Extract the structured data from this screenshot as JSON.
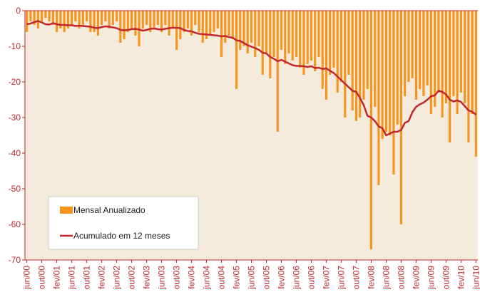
{
  "chart_data": {
    "type": "bar_line",
    "categories": [
      "jun/00",
      null,
      null,
      null,
      "out/00",
      null,
      null,
      null,
      "fev/01",
      null,
      null,
      null,
      "jun/01",
      null,
      null,
      null,
      "out/01",
      null,
      null,
      null,
      "fev/02",
      null,
      null,
      null,
      "jun/02",
      null,
      null,
      null,
      "out/02",
      null,
      null,
      null,
      "fev/03",
      null,
      null,
      null,
      "jun/03",
      null,
      null,
      null,
      "out/03",
      null,
      null,
      null,
      "fev/04",
      null,
      null,
      null,
      "jun/04",
      null,
      null,
      null,
      "out/04",
      null,
      null,
      null,
      "fev/05",
      null,
      null,
      null,
      "jun/05",
      null,
      null,
      null,
      "out/05",
      null,
      null,
      null,
      "fev/06",
      null,
      null,
      null,
      "jun/06",
      null,
      null,
      null,
      "out/06",
      null,
      null,
      null,
      "fev/07",
      null,
      null,
      null,
      "jun/07",
      null,
      null,
      null,
      "out/07",
      null,
      null,
      null,
      "fev/08",
      null,
      null,
      null,
      "jun/08",
      null,
      null,
      null,
      "out/08",
      null,
      null,
      null,
      "fev/09",
      null,
      null,
      null,
      "jun/09",
      null,
      null,
      null,
      "out/09",
      null,
      null,
      null,
      "fev/10",
      null,
      null,
      null,
      "jun/10"
    ],
    "series": [
      {
        "name": "Mensal Anualizado",
        "kind": "bar",
        "color": "#f7941d",
        "values": [
          -6,
          -3,
          -4,
          -5,
          -3,
          -2,
          -3,
          -4,
          -6,
          -5,
          -6,
          -5,
          -4,
          -3,
          -5,
          -4,
          -3,
          -6,
          -6,
          -7,
          -4,
          -3,
          -5,
          -4,
          -3,
          -9,
          -8,
          -6,
          -5,
          -7,
          -10,
          -5,
          -4,
          -6,
          -5,
          -4,
          -6,
          -4,
          -7,
          -5,
          -11,
          -8,
          -6,
          -5,
          -7,
          -4,
          -6,
          -9,
          -8,
          -7,
          -6,
          -5,
          -13,
          -9,
          -7,
          -8,
          -22,
          -11,
          -10,
          -12,
          -9,
          -13,
          -10,
          -18,
          -12,
          -19,
          -13,
          -34,
          -11,
          -15,
          -12,
          -14,
          -13,
          -16,
          -18,
          -15,
          -14,
          -17,
          -13,
          -22,
          -25,
          -18,
          -16,
          -23,
          -20,
          -30,
          -18,
          -28,
          -31,
          -30,
          -25,
          -22,
          -67,
          -27,
          -49,
          -36,
          -34,
          -35,
          -46,
          -32,
          -60,
          -24,
          -20,
          -19,
          -25,
          -22,
          -24,
          -21,
          -29,
          -27,
          -23,
          -30,
          -26,
          -37,
          -24,
          -29,
          -23,
          -26,
          -37,
          -29,
          -41
        ]
      },
      {
        "name": "Acumulado em 12 meses",
        "kind": "line",
        "color": "#c1272d",
        "values": [
          -3.8,
          -3.6,
          -3.2,
          -2.9,
          -3.3,
          -3.8,
          -3.9,
          -3.5,
          -3.8,
          -4.0,
          -4.0,
          -4.1,
          -4.1,
          -4.3,
          -4.2,
          -4.3,
          -4.4,
          -4.5,
          -4.8,
          -4.9,
          -4.6,
          -4.4,
          -4.5,
          -4.7,
          -4.9,
          -5.4,
          -5.5,
          -5.4,
          -5.2,
          -5.1,
          -5.3,
          -5.6,
          -5.4,
          -5.1,
          -5.0,
          -5.2,
          -5.3,
          -5.1,
          -4.9,
          -4.8,
          -4.8,
          -4.9,
          -5.4,
          -5.7,
          -5.8,
          -6.2,
          -6.5,
          -6.6,
          -6.7,
          -6.8,
          -6.9,
          -7.0,
          -7.2,
          -7.1,
          -7.4,
          -7.6,
          -8.3,
          -8.5,
          -9.1,
          -9.7,
          -10.1,
          -10.5,
          -11.0,
          -11.8,
          -12.0,
          -13.0,
          -13.5,
          -14.2,
          -13.8,
          -14.3,
          -14.8,
          -15.3,
          -15.5,
          -15.5,
          -15.6,
          -15.8,
          -15.6,
          -16.1,
          -16.0,
          -16.4,
          -16.2,
          -16.9,
          -17.5,
          -18.5,
          -19.5,
          -20.5,
          -21.5,
          -22.5,
          -22.8,
          -24.5,
          -26.5,
          -29.5,
          -30.0,
          -31.0,
          -32.5,
          -33.0,
          -35.0,
          -34.5,
          -34.0,
          -34.0,
          -33.5,
          -31.5,
          -31.0,
          -28.5,
          -27.0,
          -26.3,
          -25.8,
          -25.0,
          -24.0,
          -23.8,
          -22.5,
          -22.8,
          -23.5,
          -25.0,
          -25.5,
          -25.2,
          -25.6,
          -26.8,
          -28.0,
          -28.4,
          -29.2
        ]
      }
    ],
    "ylim": [
      -70,
      0
    ],
    "yticks": [
      0,
      -10,
      -20,
      -30,
      -40,
      -50,
      -60,
      -70
    ],
    "legend": "lower left",
    "background": "#f5ebdc"
  }
}
